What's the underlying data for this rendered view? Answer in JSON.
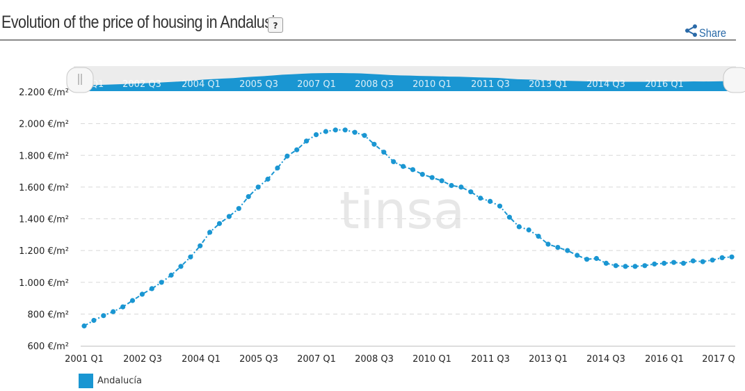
{
  "header": {
    "title": "Evolution of the price of housing in Andalusia",
    "help_label": "?",
    "share_label": "Share",
    "share_icon": "share-icon"
  },
  "watermark": "tinsa",
  "colors": {
    "series": "#1a96d2",
    "navigator_fill": "#1a96d2",
    "navigator_bg": "#ececec",
    "grid": "#d8d8d8"
  },
  "chart_data": {
    "type": "line",
    "title": "Evolution of the price of housing in Andalusia",
    "xlabel": "",
    "ylabel": "",
    "ylim": [
      600,
      2200
    ],
    "y_ticks": [
      600,
      800,
      1000,
      1200,
      1400,
      1600,
      1800,
      2000,
      2200
    ],
    "y_tick_labels": [
      "600 €/m²",
      "800 €/m²",
      "1.000 €/m²",
      "1.200 €/m²",
      "1.400 €/m²",
      "1.600 €/m²",
      "1.800 €/m²",
      "2.000 €/m²",
      "2.200 €/m²"
    ],
    "x_tick_labels": [
      "2001 Q1",
      "2002 Q3",
      "2004 Q1",
      "2005 Q3",
      "2007 Q1",
      "2008 Q3",
      "2010 Q1",
      "2011 Q3",
      "2013 Q1",
      "2014 Q3",
      "2016 Q1",
      "2017 Q"
    ],
    "navigator_labels": [
      "Q1",
      "2002 Q3",
      "2004 Q1",
      "2005 Q3",
      "2007 Q1",
      "2008 Q3",
      "2010 Q1",
      "2011 Q3",
      "2013 Q1",
      "2014 Q3",
      "2016 Q1"
    ],
    "grid": true,
    "legend_position": "bottom-left",
    "line_style": "dash-dot with circular markers",
    "series": [
      {
        "name": "Andalucía",
        "values": [
          725,
          760,
          790,
          815,
          845,
          885,
          925,
          960,
          1000,
          1045,
          1100,
          1160,
          1230,
          1315,
          1370,
          1415,
          1465,
          1540,
          1600,
          1650,
          1720,
          1795,
          1835,
          1890,
          1930,
          1950,
          1960,
          1960,
          1945,
          1925,
          1870,
          1820,
          1760,
          1730,
          1710,
          1680,
          1660,
          1640,
          1610,
          1600,
          1570,
          1530,
          1510,
          1480,
          1410,
          1350,
          1330,
          1290,
          1240,
          1220,
          1200,
          1170,
          1145,
          1150,
          1120,
          1105,
          1100,
          1100,
          1105,
          1115,
          1120,
          1125,
          1120,
          1135,
          1130,
          1140,
          1155,
          1160
        ]
      }
    ]
  }
}
